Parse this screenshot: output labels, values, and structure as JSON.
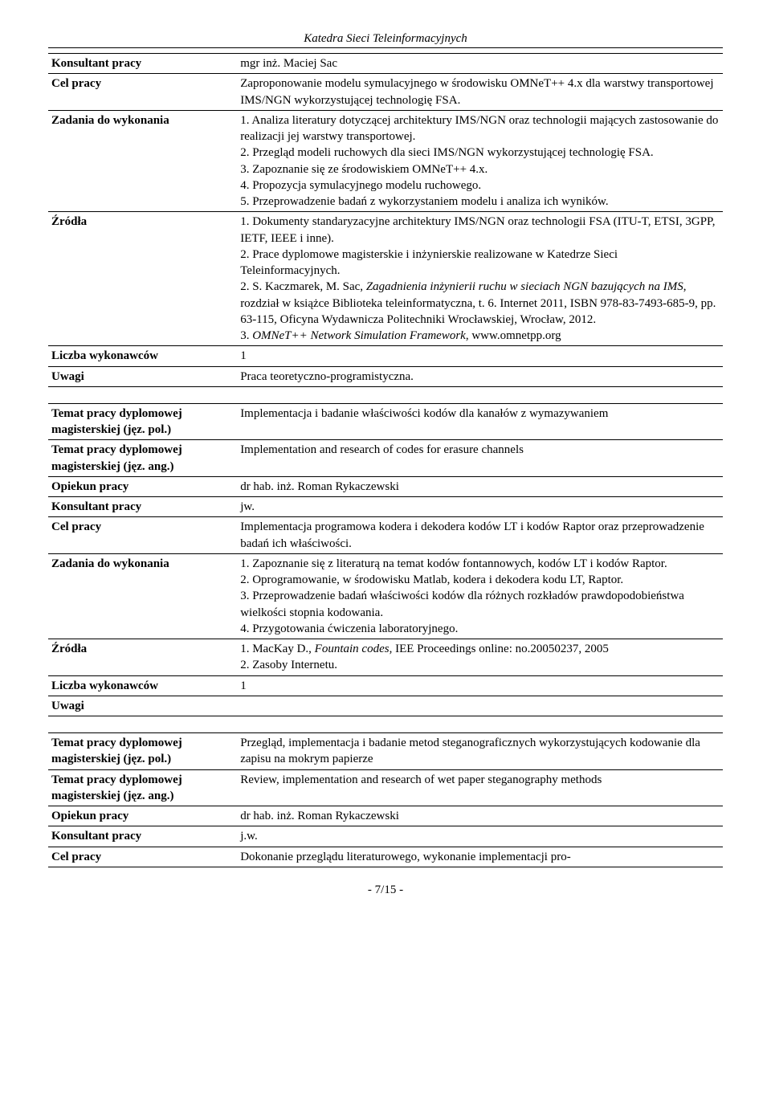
{
  "header": "Katedra Sieci Teleinformacyjnych",
  "footer": "- 7/15 -",
  "table1": {
    "rows": [
      {
        "label": "Konsultant pracy",
        "value": "mgr inż. Maciej Sac"
      },
      {
        "label": "Cel pracy",
        "value": "Zaproponowanie modelu symulacyjnego w środowisku OMNeT++ 4.x dla warstwy transportowej IMS/NGN wykorzystującej technologię FSA."
      },
      {
        "label": "Zadania do wykonania",
        "value": "1. Analiza literatury dotyczącej architektury IMS/NGN oraz technologii mających zastosowanie do realizacji jej warstwy transportowej.\n2. Przegląd modeli ruchowych dla sieci IMS/NGN wykorzystującej technologię FSA.\n3. Zapoznanie się ze środowiskiem OMNeT++ 4.x.\n4. Propozycja symulacyjnego modelu ruchowego.\n5. Przeprowadzenie badań z wykorzystaniem modelu i analiza ich wyników."
      },
      {
        "label": "Źródła",
        "value": "1. Dokumenty standaryzacyjne architektury IMS/NGN oraz technologii FSA (ITU-T, ETSI, 3GPP, IETF, IEEE i inne).\n2. Prace dyplomowe magisterskie i inżynierskie realizowane w Katedrze Sieci Teleinformacyjnych.\n2. S. Kaczmarek, M. Sac, <i>Zagadnienia inżynierii ruchu w sieciach NGN bazujących na IMS</i>, rozdział w książce Biblioteka teleinformatyczna, t. 6. Internet 2011, ISBN 978-83-7493-685-9, pp. 63-115, Oficyna Wydawnicza Politechniki Wrocławskiej, Wrocław, 2012.\n3. <i>OMNeT++ Network Simulation Framework</i>, www.omnetpp.org"
      },
      {
        "label": "Liczba wykonawców",
        "value": "1"
      },
      {
        "label": "Uwagi",
        "value": "Praca teoretyczno-programistyczna."
      }
    ]
  },
  "table2": {
    "rows": [
      {
        "label": "Temat pracy dyplomowej magisterskiej (jęz. pol.)",
        "value": "Implementacja i badanie właściwości kodów dla kanałów z wymazywaniem"
      },
      {
        "label": "Temat pracy dyplomowej magisterskiej (jęz. ang.)",
        "value": "Implementation and research of codes for erasure channels"
      },
      {
        "label": "Opiekun pracy",
        "value": "dr hab. inż. Roman Rykaczewski"
      },
      {
        "label": "Konsultant pracy",
        "value": "jw."
      },
      {
        "label": "Cel pracy",
        "value": "Implementacja programowa kodera i dekodera kodów LT i kodów Raptor oraz przeprowadzenie badań ich właściwości."
      },
      {
        "label": "Zadania do wykonania",
        "value": "1. Zapoznanie się z literaturą na temat kodów fontannowych, kodów LT i kodów Raptor.\n2. Oprogramowanie, w środowisku Matlab, kodera i dekodera kodu LT, Raptor.\n3. Przeprowadzenie badań właściwości kodów dla różnych rozkładów prawdopodobieństwa wielkości stopnia kodowania.\n4. Przygotowania ćwiczenia laboratoryjnego."
      },
      {
        "label": "Źródła",
        "value": "1. MacKay D., <i>Fountain codes</i>, IEE Proceedings online: no.20050237, 2005\n2. Zasoby Internetu."
      },
      {
        "label": "Liczba wykonawców",
        "value": "1"
      },
      {
        "label": "Uwagi",
        "value": ""
      }
    ]
  },
  "table3": {
    "rows": [
      {
        "label": "Temat pracy dyplomowej magisterskiej (jęz. pol.)",
        "value": "Przegląd, implementacja i badanie metod steganograficznych wykorzystujących kodowanie dla zapisu na mokrym papierze"
      },
      {
        "label": "Temat pracy dyplomowej magisterskiej (jęz. ang.)",
        "value": "Review, implementation and research of wet paper steganography methods"
      },
      {
        "label": "Opiekun pracy",
        "value": "dr hab. inż. Roman Rykaczewski"
      },
      {
        "label": "Konsultant pracy",
        "value": "j.w."
      },
      {
        "label": "Cel pracy",
        "value": "Dokonanie przeglądu literaturowego, wykonanie implementacji pro-"
      }
    ]
  }
}
